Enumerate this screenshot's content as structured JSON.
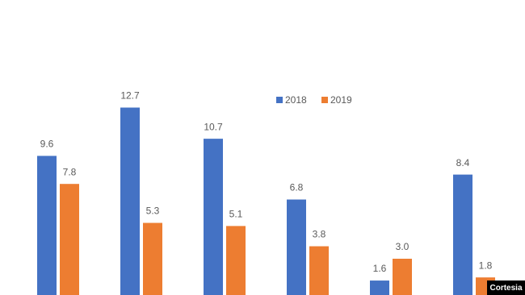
{
  "chart_data": {
    "type": "bar",
    "categories": [
      null,
      null,
      null,
      null,
      null,
      null
    ],
    "series": [
      {
        "name": "2018",
        "color": "#4472c4",
        "values": [
          9.6,
          12.7,
          10.7,
          6.8,
          1.6,
          8.4
        ],
        "value_labels": [
          "9.6",
          "12.7",
          "10.7",
          "6.8",
          "1.6",
          "8.4"
        ]
      },
      {
        "name": "2019",
        "color": "#ed7d31",
        "values": [
          7.8,
          5.3,
          5.1,
          3.8,
          3.0,
          1.8
        ],
        "value_labels": [
          "7.8",
          "5.3",
          "5.1",
          "3.8",
          "3.0",
          "1.8"
        ]
      }
    ],
    "ylim": [
      0,
      18
    ],
    "credit": "Cortesia"
  }
}
